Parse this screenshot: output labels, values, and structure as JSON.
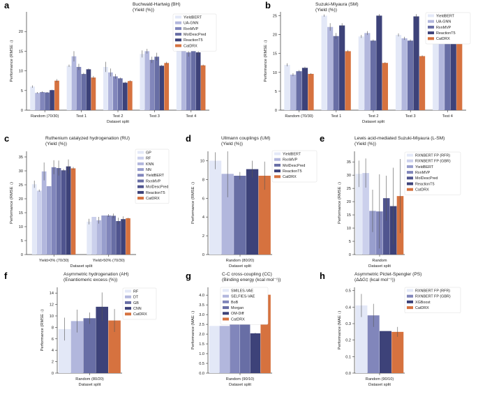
{
  "palette": [
    "#e3e8f7",
    "#c3c8e6",
    "#a6abd3",
    "#8b91c3",
    "#6c72ae",
    "#4e5490",
    "#3a3f78",
    "#d6723f"
  ],
  "xlabel_common": "Dataset split",
  "chart_data": [
    {
      "panel": "a",
      "type": "bar",
      "title": [
        "Buchwald-Hartwig (BH)",
        "(Yield (%))"
      ],
      "ylabel": "Performance (RMSE ↓)",
      "xlabel": "Dataset split",
      "ylim": [
        0,
        25
      ],
      "yticks": [
        0,
        5,
        10,
        15,
        20
      ],
      "categories": [
        "Random (70/30)",
        "Test 1",
        "Test 2",
        "Test 3",
        "Test 4"
      ],
      "series": [
        {
          "name": "YieldBERT",
          "values": [
            6.0,
            11.3,
            11.0,
            14.3,
            19.8
          ],
          "err": [
            0.3,
            0.3,
            1.3,
            0.9,
            1.2
          ]
        },
        {
          "name": "UA-GNN",
          "values": [
            4.4,
            13.7,
            9.6,
            15.0,
            18.7
          ],
          "err": [
            0.2,
            1.3,
            1.0,
            0.6,
            0.5
          ]
        },
        {
          "name": "RxnMVP",
          "values": [
            4.6,
            11.0,
            8.6,
            12.8,
            14.7
          ],
          "err": [
            0.2,
            0.8,
            0.6,
            0.8,
            1.1
          ]
        },
        {
          "name": "MolDescPred",
          "values": [
            4.5,
            9.2,
            8.1,
            13.6,
            20.7
          ],
          "err": [
            0.1,
            0.3,
            0.2,
            1.0,
            0.9
          ]
        },
        {
          "name": "ReactionT5",
          "values": [
            5.1,
            10.4,
            7.0,
            11.3,
            14.7
          ],
          "err": [
            0.1,
            0.2,
            0.2,
            0.2,
            1.0
          ]
        },
        {
          "name": "CatDRX",
          "values": [
            7.5,
            8.3,
            7.4,
            12.0,
            11.4
          ],
          "err": [
            0.4,
            0.4,
            0.2,
            0.3,
            0.2
          ]
        }
      ],
      "legend": "top-right"
    },
    {
      "panel": "b",
      "type": "bar",
      "title": [
        "Suzuki-Miyaura (SM)",
        "(Yield (%))"
      ],
      "ylabel": "Performance (RMSE ↓)",
      "xlabel": "Dataset split",
      "ylim": [
        0,
        26
      ],
      "yticks": [
        0,
        5,
        10,
        15,
        20,
        25
      ],
      "categories": [
        "Random (70/30)",
        "Test 1",
        "Test 2",
        "Test 3",
        "Test 4"
      ],
      "series": [
        {
          "name": "YieldBERT",
          "values": [
            12.0,
            25.0,
            19.5,
            19.9,
            23.0
          ],
          "err": [
            0.4,
            0.3,
            0.4,
            0.4,
            0.3
          ]
        },
        {
          "name": "UA-GNN",
          "values": [
            9.4,
            22.0,
            20.4,
            19.0,
            22.0
          ],
          "err": [
            0.4,
            1.0,
            0.5,
            0.4,
            0.4
          ]
        },
        {
          "name": "RxnMVP",
          "values": [
            10.3,
            19.6,
            18.4,
            18.4,
            21.7
          ],
          "err": [
            0.3,
            0.8,
            0.3,
            0.3,
            0.6
          ]
        },
        {
          "name": "ReactionT5",
          "values": [
            11.2,
            22.4,
            25.0,
            24.8,
            25.4
          ],
          "err": [
            0.3,
            0.6,
            0.4,
            0.6,
            0.4
          ]
        },
        {
          "name": "CatDRX",
          "values": [
            9.6,
            15.6,
            12.5,
            14.3,
            18.5
          ],
          "err": [
            0.2,
            0.3,
            0.2,
            0.2,
            0.2
          ]
        }
      ],
      "legend": "top-right"
    },
    {
      "panel": "c",
      "type": "bar",
      "title": [
        "Ruthenium catalyzed hydrogenation (RU)",
        "(Yield (%))"
      ],
      "ylabel": "Performance (RMSE ↓)",
      "xlabel": "Dataset split",
      "ylim": [
        0,
        37
      ],
      "yticks": [
        0,
        5,
        10,
        15,
        20,
        25,
        30,
        35
      ],
      "categories": [
        "Yield>0% (70/30)",
        "Yield>50% (70/30)"
      ],
      "series": [
        {
          "name": "GP",
          "values": [
            25.2,
            11.8
          ],
          "err": [
            1.3,
            1.0
          ]
        },
        {
          "name": "RF",
          "values": [
            22.9,
            13.5
          ],
          "err": [
            0.4,
            0.0
          ]
        },
        {
          "name": "KNN",
          "values": [
            29.8,
            12.3
          ],
          "err": [
            3.2,
            1.2
          ]
        },
        {
          "name": "NN",
          "values": [
            24.5,
            14.0
          ],
          "err": [
            0.0,
            0.0
          ]
        },
        {
          "name": "YieldBERT",
          "values": [
            31.3,
            14.0
          ],
          "err": [
            2.5,
            0.5
          ]
        },
        {
          "name": "RxnMVP",
          "values": [
            31.0,
            13.9
          ],
          "err": [
            2.7,
            0.8
          ]
        },
        {
          "name": "MolDescPred",
          "values": [
            30.2,
            12.0
          ],
          "err": [
            0.5,
            1.2
          ]
        },
        {
          "name": "ReactionT5",
          "values": [
            31.6,
            12.7
          ],
          "err": [
            2.5,
            1.0
          ]
        },
        {
          "name": "CatDRX",
          "values": [
            30.9,
            13.0
          ],
          "err": [
            0.5,
            0.2
          ]
        }
      ],
      "legend": "top-right"
    },
    {
      "panel": "d",
      "type": "bar",
      "title": [
        "Ullmann couplings (UM)",
        "(Yield (%))"
      ],
      "ylabel": "Performance (RMSE ↓)",
      "xlabel": "Dataset split",
      "ylim": [
        0,
        11
      ],
      "yticks": [
        0,
        2,
        4,
        6,
        8,
        10
      ],
      "categories": [
        "Random (80/20)"
      ],
      "series": [
        {
          "name": "YieldBERT",
          "values": [
            10.0
          ],
          "err": [
            0.9
          ]
        },
        {
          "name": "RxnMVP",
          "values": [
            8.6
          ],
          "err": [
            2.5
          ]
        },
        {
          "name": "MolDescPred",
          "values": [
            8.4
          ],
          "err": [
            0.4
          ]
        },
        {
          "name": "ReactionT5",
          "values": [
            9.1
          ],
          "err": [
            0.9
          ]
        },
        {
          "name": "CatDRX",
          "values": [
            8.4
          ],
          "err": [
            1.5
          ]
        }
      ],
      "legend": "top-right"
    },
    {
      "panel": "e",
      "type": "bar",
      "title": [
        "Lewis acid-mediated Suzuki-Miyaura (L-SM)",
        "(Yield (%))"
      ],
      "ylabel": "Performance (RMSE ↓)",
      "xlabel": "Dataset split",
      "ylim": [
        0,
        39
      ],
      "yticks": [
        0,
        5,
        10,
        15,
        20,
        25,
        30,
        35
      ],
      "categories": [
        "Random"
      ],
      "series": [
        {
          "name": "RXNBERT FP (RFR)",
          "values": [
            30.5
          ],
          "err": [
            5.0
          ]
        },
        {
          "name": "RXNBERT FP (GBR)",
          "values": [
            30.8
          ],
          "err": [
            5.5
          ]
        },
        {
          "name": "YieldBERT",
          "values": [
            16.5
          ],
          "err": [
            8.0
          ]
        },
        {
          "name": "RxnMVP",
          "values": [
            16.3
          ],
          "err": [
            14.0
          ]
        },
        {
          "name": "MolDescPred",
          "values": [
            21.3
          ],
          "err": [
            8.5
          ]
        },
        {
          "name": "ReactionT5",
          "values": [
            18.3
          ],
          "err": [
            14.5
          ]
        },
        {
          "name": "CatDRX",
          "values": [
            22.1
          ],
          "err": [
            14.0
          ]
        }
      ],
      "legend": "top-right"
    },
    {
      "panel": "f",
      "type": "bar",
      "title": [
        "Asymmetric hydrogenation (AH)",
        "(Enantiomeric excess (%))"
      ],
      "ylabel": "Performance (RMSE ↓)",
      "xlabel": "Dataset split",
      "ylim": [
        0,
        15
      ],
      "yticks": [
        0,
        2,
        4,
        6,
        8,
        10,
        12,
        14
      ],
      "categories": [
        "Random (80/20)"
      ],
      "series": [
        {
          "name": "RF",
          "values": [
            7.7
          ],
          "err": [
            2.0
          ]
        },
        {
          "name": "DT",
          "values": [
            9.1
          ],
          "err": [
            2.0
          ]
        },
        {
          "name": "GB",
          "values": [
            9.6
          ],
          "err": [
            1.0
          ]
        },
        {
          "name": "CNN",
          "values": [
            11.6
          ],
          "err": [
            2.5
          ]
        },
        {
          "name": "CatDRX",
          "values": [
            9.2
          ],
          "err": [
            2.0
          ]
        }
      ],
      "legend": "top-right"
    },
    {
      "panel": "g",
      "type": "bar",
      "title": [
        "C-C cross-coupling (CC)",
        "(Binding energy (kcal mol⁻¹))"
      ],
      "ylabel": "Performance (MAE ↓)",
      "xlabel": "Dataset split",
      "ylim": [
        0,
        4.4
      ],
      "yticks": [
        0.0,
        0.5,
        1.0,
        1.5,
        2.0,
        2.5,
        3.0,
        3.5,
        4.0
      ],
      "categories": [
        "Random (90/10)"
      ],
      "series": [
        {
          "name": "SMILES-VAE",
          "values": [
            2.42
          ],
          "err": [
            0.0
          ]
        },
        {
          "name": "SELFIES-VAE",
          "values": [
            2.42
          ],
          "err": [
            0.0
          ]
        },
        {
          "name": "BoB",
          "values": [
            2.59
          ],
          "err": [
            0.0
          ]
        },
        {
          "name": "Morgan",
          "values": [
            2.85
          ],
          "err": [
            0.0
          ]
        },
        {
          "name": "OM-Diff",
          "values": [
            2.04
          ],
          "err": [
            0.03
          ]
        },
        {
          "name": "CatDRX",
          "values": [
            4.02
          ],
          "err": [
            0.04
          ]
        }
      ],
      "legend": "top-left"
    },
    {
      "panel": "h",
      "type": "bar",
      "title": [
        "Asymmetric Pictet-Spengler (PS)",
        "(ΔΔG‡ (kcal mol⁻¹))"
      ],
      "ylabel": "Performance (MAE ↓)",
      "xlabel": "Dataset split",
      "ylim": [
        0,
        0.52
      ],
      "yticks": [
        0.0,
        0.1,
        0.2,
        0.3,
        0.4,
        0.5
      ],
      "categories": [
        "Random (90/10)"
      ],
      "series": [
        {
          "name": "RXNBERT FP (RFR)",
          "values": [
            0.41
          ],
          "err": [
            0.07
          ]
        },
        {
          "name": "RXNBERT FP (GBR)",
          "values": [
            0.35
          ],
          "err": [
            0.07
          ]
        },
        {
          "name": "XGBoost",
          "values": [
            0.255
          ],
          "err": [
            0.0
          ]
        },
        {
          "name": "CatDRX",
          "values": [
            0.25
          ],
          "err": [
            0.03
          ]
        }
      ],
      "legend": "top-right"
    }
  ]
}
